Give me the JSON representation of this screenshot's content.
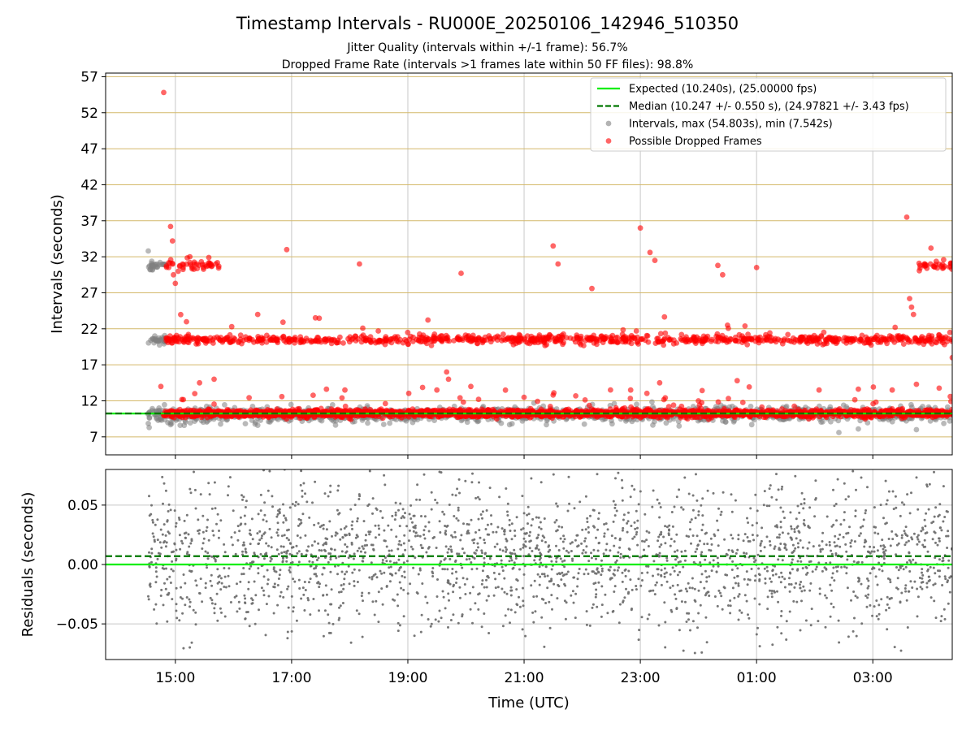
{
  "figure": {
    "title": "Timestamp Intervals - RU000E_20250106_142946_510350",
    "subtitle_1": "Jitter Quality (intervals within +/-1 frame): 56.7%",
    "subtitle_2": "Dropped Frame Rate (intervals >1 frames late within 50 FF files): 98.8%",
    "xlabel": "Time (UTC)"
  },
  "colors": {
    "expected": "#00ee00",
    "median": "#007700",
    "intervals": "#808080",
    "dropped": "#ff0000",
    "hgrid": "#d4b96a",
    "vgrid": "#c8c8c8"
  },
  "chart_data": [
    {
      "type": "scatter",
      "panel": "intervals",
      "ylabel": "Intervals (seconds)",
      "ylim": [
        4.5,
        57.5
      ],
      "yticks": [
        7,
        12,
        17,
        22,
        27,
        32,
        37,
        42,
        47,
        52,
        57
      ],
      "xlim": [
        "13:48",
        "04:22"
      ],
      "xticks": [
        "15:00",
        "17:00",
        "19:00",
        "21:00",
        "23:00",
        "01:00",
        "03:00"
      ],
      "grid": true,
      "legend": {
        "placement": "top-right",
        "entries": [
          {
            "label": "Expected (10.240s), (25.00000 fps)",
            "style": "line"
          },
          {
            "label": "Median (10.247 +/- 0.550 s), (24.97821 +/- 3.43 fps)",
            "style": "dashed"
          },
          {
            "label": "Intervals, max (54.803s), min (7.542s)",
            "style": "marker-gray"
          },
          {
            "label": "Possible Dropped Frames",
            "style": "marker-red"
          }
        ]
      },
      "series": [
        {
          "name": "Expected (10.240s), (25.00000 fps)",
          "value": 10.24
        },
        {
          "name": "Median (10.247 +/- 0.550 s), (24.97821 +/- 3.43 fps)",
          "value": 10.247
        },
        {
          "name": "Intervals, max (54.803s), min (7.542s)",
          "bands": [
            {
              "x_start": "14:32",
              "x_end": "04:22",
              "center": 10.1,
              "spread": 0.5
            },
            {
              "x_start": "14:32",
              "x_end": "14:50",
              "center": 20.4,
              "spread": 0.3
            },
            {
              "x_start": "14:32",
              "x_end": "14:50",
              "center": 30.8,
              "spread": 0.3
            }
          ],
          "points": [
            [
              "14:32",
              32.8
            ],
            [
              "14:33",
              8.3
            ],
            [
              "14:55",
              8.7
            ],
            [
              "15:05",
              8.6
            ],
            [
              "16:25",
              8.6
            ],
            [
              "19:05",
              9.0
            ],
            [
              "20:45",
              8.7
            ],
            [
              "23:40",
              8.5
            ],
            [
              "24:55",
              8.7
            ],
            [
              "26:25",
              7.6
            ],
            [
              "26:45",
              8.1
            ],
            [
              "27:45",
              8.0
            ]
          ]
        },
        {
          "name": "Possible Dropped Frames",
          "bands": [
            {
              "x_start": "14:48",
              "x_end": "04:22",
              "center": 10.25,
              "spread": 0.25
            },
            {
              "x_start": "14:50",
              "x_end": "04:22",
              "center": 20.5,
              "spread": 0.3
            },
            {
              "x_start": "14:50",
              "x_end": "15:45",
              "center": 30.8,
              "spread": 0.4
            },
            {
              "x_start": "27:45",
              "x_end": "28:22",
              "center": 30.8,
              "spread": 0.3
            }
          ],
          "points": [
            [
              "14:48",
              54.8
            ],
            [
              "14:55",
              36.2
            ],
            [
              "14:57",
              34.2
            ],
            [
              "14:58",
              29.5
            ],
            [
              "15:00",
              28.3
            ],
            [
              "15:15",
              32.0
            ],
            [
              "16:55",
              33.0
            ],
            [
              "18:10",
              31.0
            ],
            [
              "19:55",
              29.7
            ],
            [
              "21:30",
              33.5
            ],
            [
              "21:35",
              31.0
            ],
            [
              "22:10",
              27.6
            ],
            [
              "23:00",
              36.0
            ],
            [
              "23:10",
              32.6
            ],
            [
              "23:15",
              31.5
            ],
            [
              "24:20",
              30.8
            ],
            [
              "24:25",
              29.5
            ],
            [
              "25:00",
              30.5
            ],
            [
              "27:35",
              37.5
            ],
            [
              "27:38",
              26.2
            ],
            [
              "27:40",
              25.0
            ],
            [
              "27:42",
              24.0
            ],
            [
              "28:00",
              33.2
            ],
            [
              "14:45",
              14.0
            ],
            [
              "15:20",
              13.0
            ],
            [
              "15:25",
              14.5
            ],
            [
              "15:40",
              15.0
            ],
            [
              "16:25",
              24.0
            ],
            [
              "17:55",
              13.5
            ],
            [
              "19:30",
              13.5
            ],
            [
              "19:40",
              16.0
            ],
            [
              "19:42",
              15.0
            ],
            [
              "20:05",
              14.0
            ],
            [
              "21:00",
              12.5
            ],
            [
              "21:30",
              12.8
            ],
            [
              "22:20",
              21.0
            ],
            [
              "22:50",
              13.5
            ],
            [
              "23:20",
              14.5
            ],
            [
              "24:00",
              12.0
            ],
            [
              "24:30",
              22.5
            ],
            [
              "24:40",
              14.8
            ],
            [
              "27:20",
              13.5
            ],
            [
              "27:45",
              14.3
            ],
            [
              "28:20",
              12.6
            ],
            [
              "28:22",
              18.0
            ]
          ]
        }
      ]
    },
    {
      "type": "scatter",
      "panel": "residuals",
      "ylabel": "Residuals (seconds)",
      "ylim": [
        -0.08,
        0.08
      ],
      "yticks": [
        -0.05,
        0.0,
        0.05
      ],
      "ytick_labels": [
        "−0.05",
        "0.00",
        "0.05"
      ],
      "xlim": [
        "13:48",
        "04:22"
      ],
      "xticks": [
        "15:00",
        "17:00",
        "19:00",
        "21:00",
        "23:00",
        "01:00",
        "03:00"
      ],
      "xtick_labels": [
        "15:00",
        "17:00",
        "19:00",
        "21:00",
        "23:00",
        "01:00",
        "03:00"
      ],
      "grid": true,
      "series": [
        {
          "name": "Expected",
          "value": 0.0
        },
        {
          "name": "Median",
          "value": 0.007
        },
        {
          "name": "Residuals",
          "x_start": "14:32",
          "x_end": "04:22",
          "center": 0.007,
          "spread": 0.03
        }
      ]
    }
  ]
}
